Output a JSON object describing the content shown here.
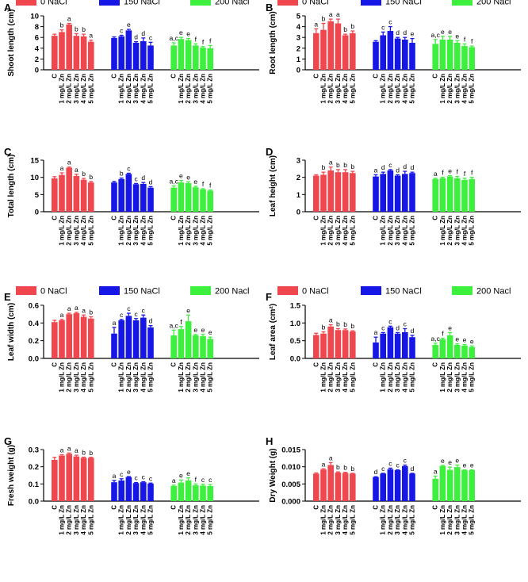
{
  "figure": {
    "colors": {
      "0 NaCl": "#f0474f",
      "150 NaCl": "#1616e6",
      "200 Nacl": "#3df03d"
    }
  },
  "chart_data": [
    {
      "type": "bar",
      "panel": "A",
      "ylabel": "Shoot length (cm)",
      "ylim": [
        0,
        10
      ],
      "yticks": [
        "0",
        "2",
        "4",
        "6",
        "8",
        "10"
      ],
      "legend": [
        "0 NaCl",
        "150 NaCl",
        "200 Nacl"
      ],
      "categories": [
        "C",
        "1 mg/L Zn",
        "2 mg/L Zn",
        "3 mg/L Zn",
        "4 mg/L Zn",
        "5 mg/L Zn"
      ],
      "series": [
        {
          "name": "0 NaCl",
          "values": [
            6.3,
            7.0,
            8.4,
            6.3,
            6.2,
            5.2
          ],
          "errors": [
            0.3,
            0.4,
            0.2,
            0.4,
            0.4,
            0.3
          ],
          "letters": [
            "",
            "b",
            "a",
            "b",
            "b",
            "a"
          ]
        },
        {
          "name": "150 NaCl",
          "values": [
            5.9,
            6.2,
            7.3,
            5.0,
            5.3,
            4.5
          ],
          "errors": [
            0.2,
            0.2,
            0.2,
            0.2,
            0.6,
            0.6
          ],
          "letters": [
            "",
            "c",
            "e",
            "d",
            "d",
            "c"
          ]
        },
        {
          "name": "200 Nacl",
          "values": [
            4.5,
            5.7,
            5.5,
            4.5,
            4.1,
            4.0
          ],
          "errors": [
            0.5,
            0.3,
            0.3,
            0.3,
            0.2,
            0.5
          ],
          "letters": [
            "a,c",
            "e",
            "e",
            "f",
            "f",
            "f"
          ]
        }
      ]
    },
    {
      "type": "bar",
      "panel": "B",
      "ylabel": "Root length (cm)",
      "ylim": [
        0,
        5
      ],
      "yticks": [
        "0",
        "1",
        "2",
        "3",
        "4",
        "5"
      ],
      "legend": [
        "0 NaCl",
        "150 NaCl",
        "200 Nacl"
      ],
      "categories": [
        "C",
        "1 mg/L Zn",
        "2 mg/L Zn",
        "3 mg/L Zn",
        "4 mg/L Zn",
        "5 mg/L Zn"
      ],
      "series": [
        {
          "name": "0 NaCl",
          "values": [
            3.4,
            3.7,
            4.5,
            4.3,
            3.2,
            3.4
          ],
          "errors": [
            0.4,
            0.6,
            0.2,
            0.4,
            0.1,
            0.2
          ],
          "letters": [
            "a",
            "b",
            "a",
            "a",
            "b",
            "b"
          ]
        },
        {
          "name": "150 NaCl",
          "values": [
            2.6,
            3.2,
            3.6,
            2.9,
            2.8,
            2.5
          ],
          "errors": [
            0.1,
            0.3,
            0.4,
            0.1,
            0.2,
            0.4
          ],
          "letters": [
            "",
            "c",
            "c",
            "d",
            "d",
            "e"
          ]
        },
        {
          "name": "200 Nacl",
          "values": [
            2.4,
            2.8,
            2.8,
            2.5,
            2.2,
            2.1
          ],
          "errors": [
            0.4,
            0.3,
            0.3,
            0.2,
            0.2,
            0.1
          ],
          "letters": [
            "a,c",
            "e",
            "e",
            "e",
            "f",
            "f"
          ]
        }
      ]
    },
    {
      "type": "bar",
      "panel": "C",
      "ylabel": "Total length (cm)",
      "ylim": [
        0,
        15
      ],
      "yticks": [
        "0",
        "5",
        "10",
        "15"
      ],
      "legend": [],
      "categories": [
        "C",
        "1 mg/L Zn",
        "2 mg/L Zn",
        "3 mg/L Zn",
        "4 mg/L Zn",
        "5 mg/L Zn"
      ],
      "series": [
        {
          "name": "0 NaCl",
          "values": [
            9.7,
            10.7,
            12.8,
            10.4,
            9.3,
            8.5
          ],
          "errors": [
            0.5,
            0.6,
            0.2,
            0.5,
            0.4,
            0.3
          ],
          "letters": [
            "",
            "a",
            "a",
            "a",
            "b",
            "b"
          ]
        },
        {
          "name": "150 NaCl",
          "values": [
            8.5,
            9.5,
            11.0,
            8.0,
            8.1,
            7.0
          ],
          "errors": [
            0.3,
            0.3,
            0.2,
            0.2,
            0.4,
            0.3
          ],
          "letters": [
            "",
            "b",
            "c",
            "c",
            "d",
            "d"
          ]
        },
        {
          "name": "200 Nacl",
          "values": [
            7.0,
            8.5,
            8.3,
            7.1,
            6.5,
            6.1
          ],
          "errors": [
            0.5,
            0.6,
            0.4,
            0.3,
            0.2,
            0.2
          ],
          "letters": [
            "a,c",
            "e",
            "e",
            "e",
            "f",
            "f"
          ]
        }
      ]
    },
    {
      "type": "bar",
      "panel": "D",
      "ylabel": "Leaf height (cm)",
      "ylim": [
        0,
        3
      ],
      "yticks": [
        "0",
        "1",
        "2",
        "3"
      ],
      "legend": [],
      "categories": [
        "C",
        "1 mg/L Zn",
        "2 mg/L Zn",
        "3 mg/L Zn",
        "4 mg/L Zn",
        "5 mg/L Zn"
      ],
      "series": [
        {
          "name": "0 NaCl",
          "values": [
            2.1,
            2.15,
            2.4,
            2.3,
            2.3,
            2.25
          ],
          "errors": [
            0.05,
            0.15,
            0.2,
            0.15,
            0.15,
            0.1
          ],
          "letters": [
            "",
            "b",
            "a",
            "b",
            "b",
            "b"
          ]
        },
        {
          "name": "150 NaCl",
          "values": [
            2.05,
            2.2,
            2.4,
            2.1,
            2.2,
            2.25
          ],
          "errors": [
            0.1,
            0.1,
            0.05,
            0.05,
            0.15,
            0.05
          ],
          "letters": [
            "a",
            "d",
            "c",
            "d",
            "d",
            "d"
          ]
        },
        {
          "name": "200 Nacl",
          "values": [
            1.9,
            1.95,
            2.05,
            1.95,
            1.85,
            1.9
          ],
          "errors": [
            0.05,
            0.05,
            0.05,
            0.1,
            0.1,
            0.1
          ],
          "letters": [
            "a",
            "f",
            "e",
            "f",
            "f",
            "f"
          ]
        }
      ]
    },
    {
      "type": "bar",
      "panel": "E",
      "ylabel": "Leaf width (cm)",
      "ylim": [
        0,
        0.6
      ],
      "yticks": [
        "0.0",
        "0.2",
        "0.4",
        "0.6"
      ],
      "legend": [
        "0 NaCl",
        "150 NaCl",
        "200 Nacl"
      ],
      "categories": [
        "C",
        "1 mg/L Zn",
        "2 mg/L Zn",
        "3 mg/L Zn",
        "4 mg/L Zn",
        "5 mg/L Zn"
      ],
      "series": [
        {
          "name": "0 NaCl",
          "values": [
            0.41,
            0.43,
            0.5,
            0.51,
            0.47,
            0.45
          ],
          "errors": [
            0.02,
            0.01,
            0.01,
            0.01,
            0.02,
            0.02
          ],
          "letters": [
            "",
            "a",
            "a",
            "a",
            "a",
            "b"
          ]
        },
        {
          "name": "150 NaCl",
          "values": [
            0.28,
            0.43,
            0.48,
            0.43,
            0.46,
            0.35
          ],
          "errors": [
            0.07,
            0.01,
            0.03,
            0.02,
            0.03,
            0.02
          ],
          "letters": [
            "a",
            "c",
            "c",
            "c",
            "c",
            "d"
          ]
        },
        {
          "name": "200 Nacl",
          "values": [
            0.26,
            0.33,
            0.42,
            0.26,
            0.25,
            0.22
          ],
          "errors": [
            0.06,
            0.03,
            0.07,
            0.01,
            0.02,
            0.02
          ],
          "letters": [
            "a,c",
            "f",
            "e",
            "e",
            "e",
            "e"
          ]
        }
      ]
    },
    {
      "type": "bar",
      "panel": "F",
      "ylabel": "Leaf area (cm²)",
      "ylim": [
        0,
        1.5
      ],
      "yticks": [
        "0.0",
        "0.5",
        "1.0",
        "1.5"
      ],
      "legend": [
        "0 NaCl",
        "150 NaCl",
        "200 Nacl"
      ],
      "categories": [
        "C",
        "1 mg/L Zn",
        "2 mg/L Zn",
        "3 mg/L Zn",
        "4 mg/L Zn",
        "5 mg/L Zn"
      ],
      "series": [
        {
          "name": "0 NaCl",
          "values": [
            0.66,
            0.7,
            0.9,
            0.8,
            0.8,
            0.76
          ],
          "errors": [
            0.05,
            0.05,
            0.05,
            0.04,
            0.03,
            0.02
          ],
          "letters": [
            "",
            "b",
            "a",
            "b",
            "b",
            "b"
          ]
        },
        {
          "name": "150 NaCl",
          "values": [
            0.45,
            0.7,
            0.88,
            0.7,
            0.74,
            0.6
          ],
          "errors": [
            0.15,
            0.03,
            0.03,
            0.03,
            0.1,
            0.05
          ],
          "letters": [
            "a",
            "c",
            "c",
            "d",
            "c",
            "d"
          ]
        },
        {
          "name": "200 Nacl",
          "values": [
            0.38,
            0.54,
            0.65,
            0.38,
            0.36,
            0.32
          ],
          "errors": [
            0.05,
            0.03,
            0.08,
            0.03,
            0.03,
            0.03
          ],
          "letters": [
            "a,c",
            "f",
            "e",
            "e",
            "e",
            "e"
          ]
        }
      ]
    },
    {
      "type": "bar",
      "panel": "G",
      "ylabel": "Fresh weight (g)",
      "ylim": [
        0,
        0.3
      ],
      "yticks": [
        "0.0",
        "0.1",
        "0.2",
        "0.3"
      ],
      "legend": [],
      "categories": [
        "C",
        "1 mg/L Zn",
        "2 mg/L Zn",
        "3 mg/L Zn",
        "4 mg/L Zn",
        "5 mg/L Zn"
      ],
      "series": [
        {
          "name": "0 NaCl",
          "values": [
            0.24,
            0.265,
            0.275,
            0.26,
            0.252,
            0.252
          ],
          "errors": [
            0.015,
            0.005,
            0.005,
            0.007,
            0.004,
            0.003
          ],
          "letters": [
            "",
            "a",
            "a",
            "a",
            "b",
            "b"
          ]
        },
        {
          "name": "150 NaCl",
          "values": [
            0.11,
            0.12,
            0.14,
            0.105,
            0.11,
            0.102
          ],
          "errors": [
            0.01,
            0.01,
            0.003,
            0.003,
            0.003,
            0.003
          ],
          "letters": [
            "a",
            "c",
            "e",
            "c",
            "c",
            "c"
          ]
        },
        {
          "name": "200 Nacl",
          "values": [
            0.088,
            0.108,
            0.12,
            0.092,
            0.09,
            0.088
          ],
          "errors": [
            0.005,
            0.015,
            0.015,
            0.008,
            0.008,
            0.008
          ],
          "letters": [
            "a",
            "e",
            "e",
            "f",
            "c",
            "c"
          ]
        }
      ]
    },
    {
      "type": "bar",
      "panel": "H",
      "ylabel": "Dry Weight (g)",
      "ylim": [
        0,
        0.015
      ],
      "yticks": [
        "0.000",
        "0.005",
        "0.010",
        "0.015"
      ],
      "legend": [],
      "categories": [
        "C",
        "1 mg/L Zn",
        "2 mg/L Zn",
        "3 mg/L Zn",
        "4 mg/L Zn",
        "5 mg/L Zn"
      ],
      "series": [
        {
          "name": "0 NaCl",
          "values": [
            0.008,
            0.0092,
            0.0105,
            0.0083,
            0.0082,
            0.008
          ],
          "errors": [
            0.0002,
            0.0002,
            0.0007,
            0.0002,
            0.0002,
            0.0001
          ],
          "letters": [
            "",
            "a",
            "a",
            "b",
            "b",
            "b"
          ]
        },
        {
          "name": "150 NaCl",
          "values": [
            0.007,
            0.008,
            0.0093,
            0.009,
            0.0102,
            0.008
          ],
          "errors": [
            0.0001,
            0.0001,
            0.0003,
            0.0001,
            0.0003,
            0.0001
          ],
          "letters": [
            "d",
            "c",
            "c",
            "c",
            "c",
            "d"
          ]
        },
        {
          "name": "200 Nacl",
          "values": [
            0.0065,
            0.0102,
            0.0091,
            0.0099,
            0.009,
            0.009
          ],
          "errors": [
            0.0008,
            0.0002,
            0.0008,
            0.0006,
            0.0001,
            0.0001
          ],
          "letters": [
            "a",
            "e",
            "e",
            "e",
            "e",
            "e"
          ]
        }
      ]
    }
  ]
}
